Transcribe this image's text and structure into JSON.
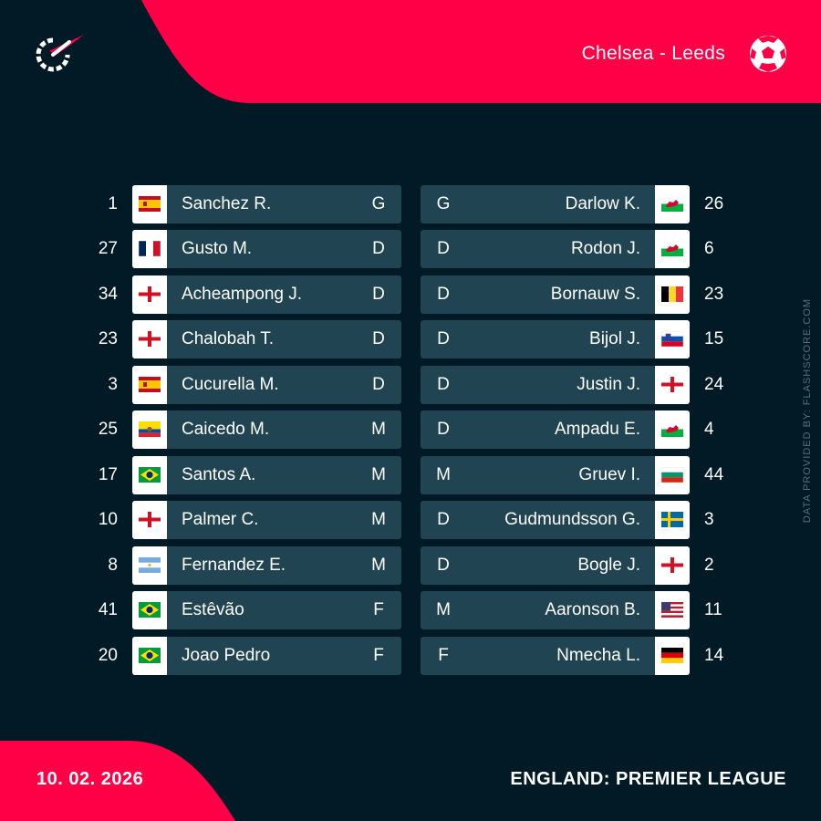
{
  "header": {
    "match": "Chelsea - Leeds",
    "logo_icon": "flashscore-logo-icon",
    "ball_icon": "soccer-ball-icon"
  },
  "side_credit": "DATA PROVIDED BY: FLASHSCORE.COM",
  "colors": {
    "accent": "#ff0046",
    "background": "#011a25",
    "row": "#204452"
  },
  "footer": {
    "date": "10. 02. 2026",
    "league": "ENGLAND: PREMIER LEAGUE"
  },
  "home": [
    {
      "num": "1",
      "name": "Sanchez R.",
      "pos": "G",
      "flag": "spain"
    },
    {
      "num": "27",
      "name": "Gusto M.",
      "pos": "D",
      "flag": "france"
    },
    {
      "num": "34",
      "name": "Acheampong J.",
      "pos": "D",
      "flag": "england"
    },
    {
      "num": "23",
      "name": "Chalobah T.",
      "pos": "D",
      "flag": "england"
    },
    {
      "num": "3",
      "name": "Cucurella M.",
      "pos": "D",
      "flag": "spain"
    },
    {
      "num": "25",
      "name": "Caicedo M.",
      "pos": "M",
      "flag": "ecuador"
    },
    {
      "num": "17",
      "name": "Santos A.",
      "pos": "M",
      "flag": "brazil"
    },
    {
      "num": "10",
      "name": "Palmer C.",
      "pos": "M",
      "flag": "england"
    },
    {
      "num": "8",
      "name": "Fernandez E.",
      "pos": "M",
      "flag": "argentina"
    },
    {
      "num": "41",
      "name": "Estêvão",
      "pos": "F",
      "flag": "brazil"
    },
    {
      "num": "20",
      "name": "Joao Pedro",
      "pos": "F",
      "flag": "brazil"
    }
  ],
  "away": [
    {
      "num": "26",
      "name": "Darlow K.",
      "pos": "G",
      "flag": "wales"
    },
    {
      "num": "6",
      "name": "Rodon J.",
      "pos": "D",
      "flag": "wales"
    },
    {
      "num": "23",
      "name": "Bornauw S.",
      "pos": "D",
      "flag": "belgium"
    },
    {
      "num": "15",
      "name": "Bijol J.",
      "pos": "D",
      "flag": "slovenia"
    },
    {
      "num": "24",
      "name": "Justin J.",
      "pos": "D",
      "flag": "england"
    },
    {
      "num": "4",
      "name": "Ampadu E.",
      "pos": "D",
      "flag": "wales"
    },
    {
      "num": "44",
      "name": "Gruev I.",
      "pos": "M",
      "flag": "bulgaria"
    },
    {
      "num": "3",
      "name": "Gudmundsson G.",
      "pos": "D",
      "flag": "sweden"
    },
    {
      "num": "2",
      "name": "Bogle J.",
      "pos": "D",
      "flag": "england"
    },
    {
      "num": "11",
      "name": "Aaronson B.",
      "pos": "M",
      "flag": "usa"
    },
    {
      "num": "14",
      "name": "Nmecha L.",
      "pos": "F",
      "flag": "germany"
    }
  ]
}
